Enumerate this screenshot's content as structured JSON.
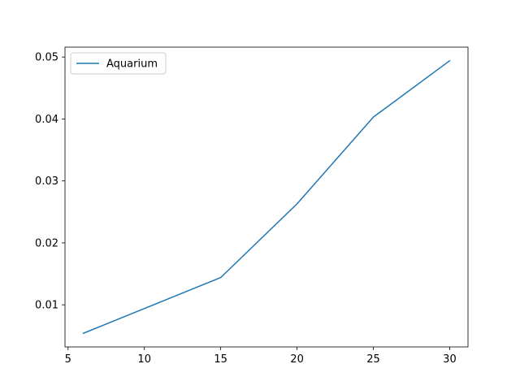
{
  "chart_data": {
    "type": "line",
    "title": "",
    "xlabel": "",
    "ylabel": "",
    "xlim": [
      4.8,
      31.2
    ],
    "ylim": [
      0.0032,
      0.0516
    ],
    "xticks": [
      5,
      10,
      15,
      20,
      25,
      30
    ],
    "yticks": [
      0.01,
      0.02,
      0.03,
      0.04,
      0.05
    ],
    "xtick_labels": [
      "5",
      "10",
      "15",
      "20",
      "25",
      "30"
    ],
    "ytick_labels": [
      "0.01",
      "0.02",
      "0.03",
      "0.04",
      "0.05"
    ],
    "grid": false,
    "legend_position": "top-left",
    "series": [
      {
        "name": "Aquarium",
        "color": "#1f77b4",
        "x": [
          6,
          15,
          20,
          25,
          30
        ],
        "y": [
          0.0054,
          0.0144,
          0.0263,
          0.0403,
          0.0494
        ]
      }
    ]
  }
}
